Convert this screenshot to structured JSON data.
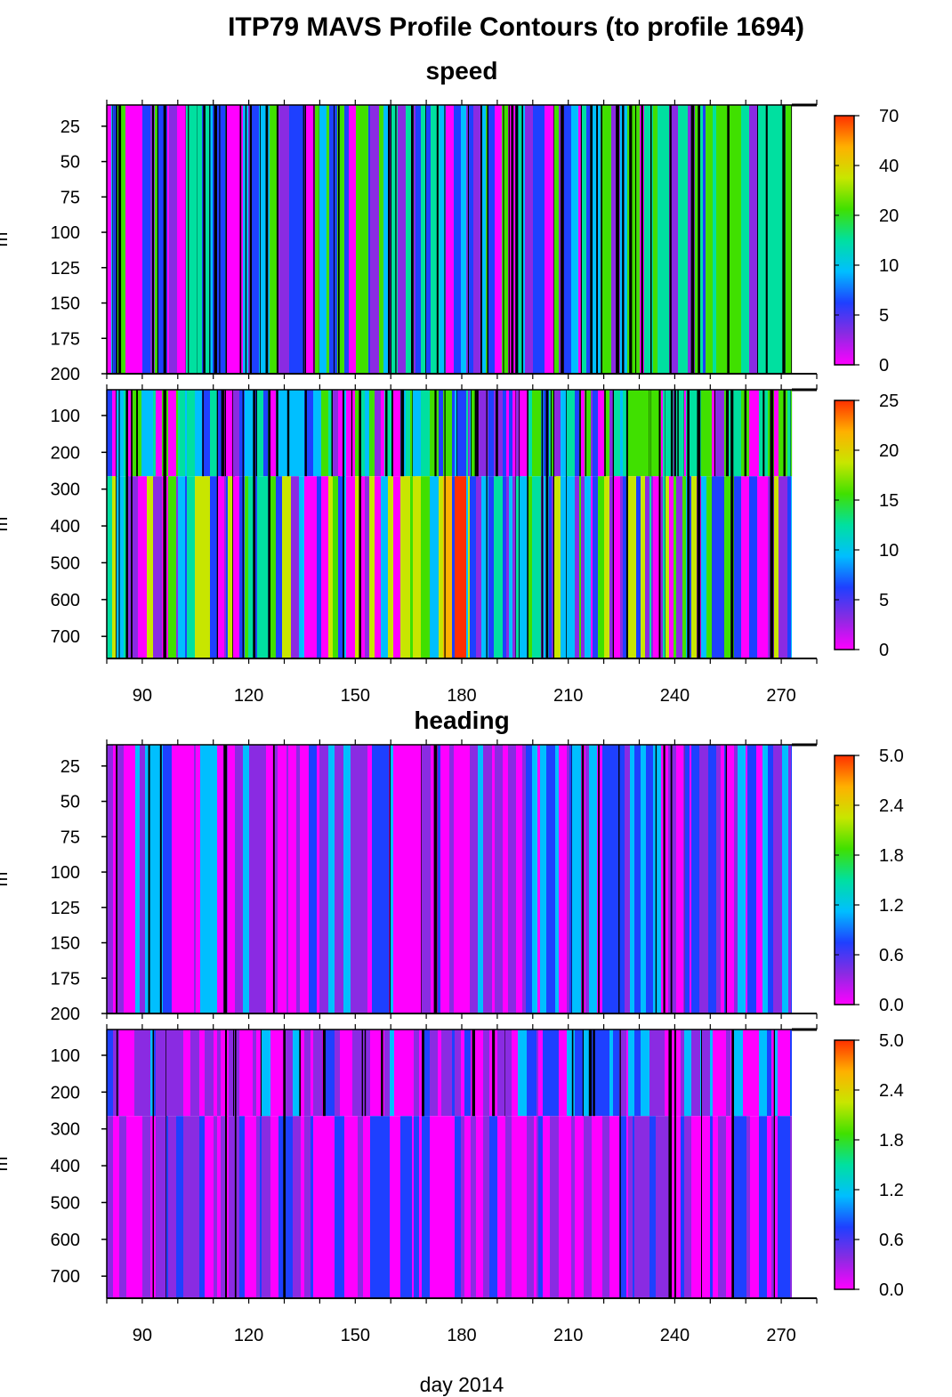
{
  "title": "ITP79 MAVS Profile Contours (to profile 1694)",
  "xlabel": "day 2014",
  "colors": {
    "colormap": [
      "#ff00ff",
      "#8a2be2",
      "#1e40ff",
      "#00bfff",
      "#00e0a0",
      "#40e000",
      "#c8e600",
      "#ffb000",
      "#ff3000"
    ]
  },
  "chart_data": [
    {
      "type": "heatmap",
      "group_title": "speed",
      "variable": "speed",
      "xlim": [
        80,
        280
      ],
      "ylim": [
        200,
        10
      ],
      "x_ticks": [
        90,
        120,
        150,
        180,
        210,
        240,
        270
      ],
      "y_ticks": [
        25,
        50,
        75,
        100,
        125,
        150,
        175,
        200
      ],
      "ylabel": "m",
      "colorbar_ticks": [
        "0",
        "5",
        "10",
        "20",
        "40",
        "70"
      ],
      "data_x_range": [
        80,
        273
      ]
    },
    {
      "type": "heatmap",
      "variable": "speed",
      "xlim": [
        80,
        280
      ],
      "ylim": [
        760,
        30
      ],
      "x_ticks": [
        90,
        120,
        150,
        180,
        210,
        240,
        270
      ],
      "y_ticks": [
        100,
        200,
        300,
        400,
        500,
        600,
        700
      ],
      "ylabel": "m",
      "colorbar_ticks": [
        "0",
        "5",
        "10",
        "15",
        "20",
        "25"
      ],
      "data_x_range": [
        80,
        273
      ]
    },
    {
      "type": "heatmap",
      "group_title": "heading",
      "variable": "heading",
      "xlim": [
        80,
        280
      ],
      "ylim": [
        200,
        10
      ],
      "x_ticks": [
        90,
        120,
        150,
        180,
        210,
        240,
        270
      ],
      "y_ticks": [
        25,
        50,
        75,
        100,
        125,
        150,
        175,
        200
      ],
      "ylabel": "m",
      "colorbar_ticks": [
        "0.0",
        "0.6",
        "1.2",
        "1.8",
        "2.4",
        "5.0"
      ],
      "data_x_range": [
        80,
        273
      ]
    },
    {
      "type": "heatmap",
      "variable": "heading",
      "xlim": [
        80,
        280
      ],
      "ylim": [
        760,
        30
      ],
      "x_ticks": [
        90,
        120,
        150,
        180,
        210,
        240,
        270
      ],
      "y_ticks": [
        100,
        200,
        300,
        400,
        500,
        600,
        700
      ],
      "ylabel": "m",
      "colorbar_ticks": [
        "0.0",
        "0.6",
        "1.2",
        "1.8",
        "2.4",
        "5.0"
      ],
      "data_x_range": [
        80,
        273
      ]
    }
  ]
}
